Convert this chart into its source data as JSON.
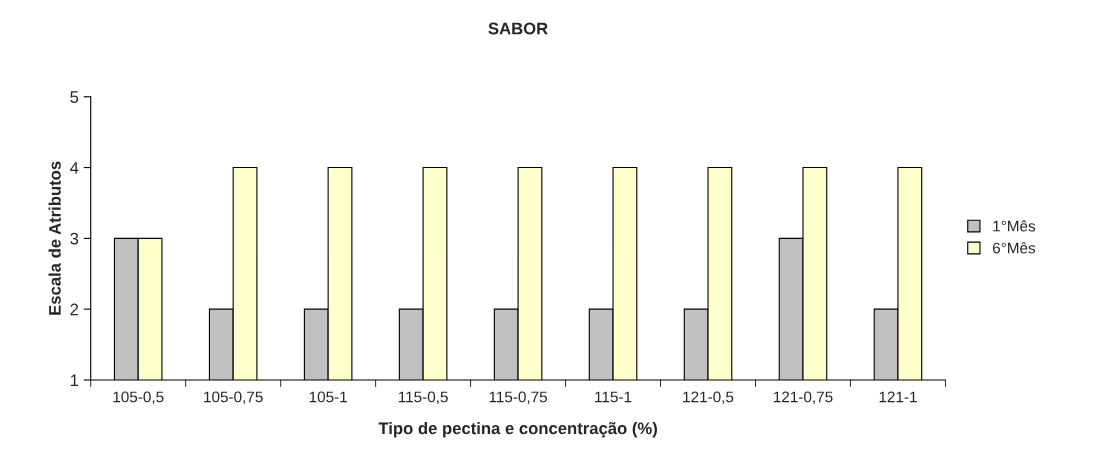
{
  "chart_data": {
    "type": "bar",
    "title": "SABOR",
    "xlabel": "Tipo de pectina e concentração (%)",
    "ylabel": "Escala de Atributos",
    "categories": [
      "105-0,5",
      "105-0,75",
      "105-1",
      "115-0,5",
      "115-0,75",
      "115-1",
      "121-0,5",
      "121-0,75",
      "121-1"
    ],
    "series": [
      {
        "name": "1°Mês",
        "color": "#c0c0c0",
        "values": [
          3,
          2,
          2,
          2,
          2,
          2,
          2,
          3,
          2
        ]
      },
      {
        "name": "6°Mês",
        "color": "#ffffcc",
        "values": [
          3,
          4,
          4,
          4,
          4,
          4,
          4,
          4,
          4
        ]
      }
    ],
    "ylim": [
      1,
      5
    ],
    "yticks": [
      1,
      2,
      3,
      4,
      5
    ],
    "grid": false,
    "legend": "right"
  }
}
